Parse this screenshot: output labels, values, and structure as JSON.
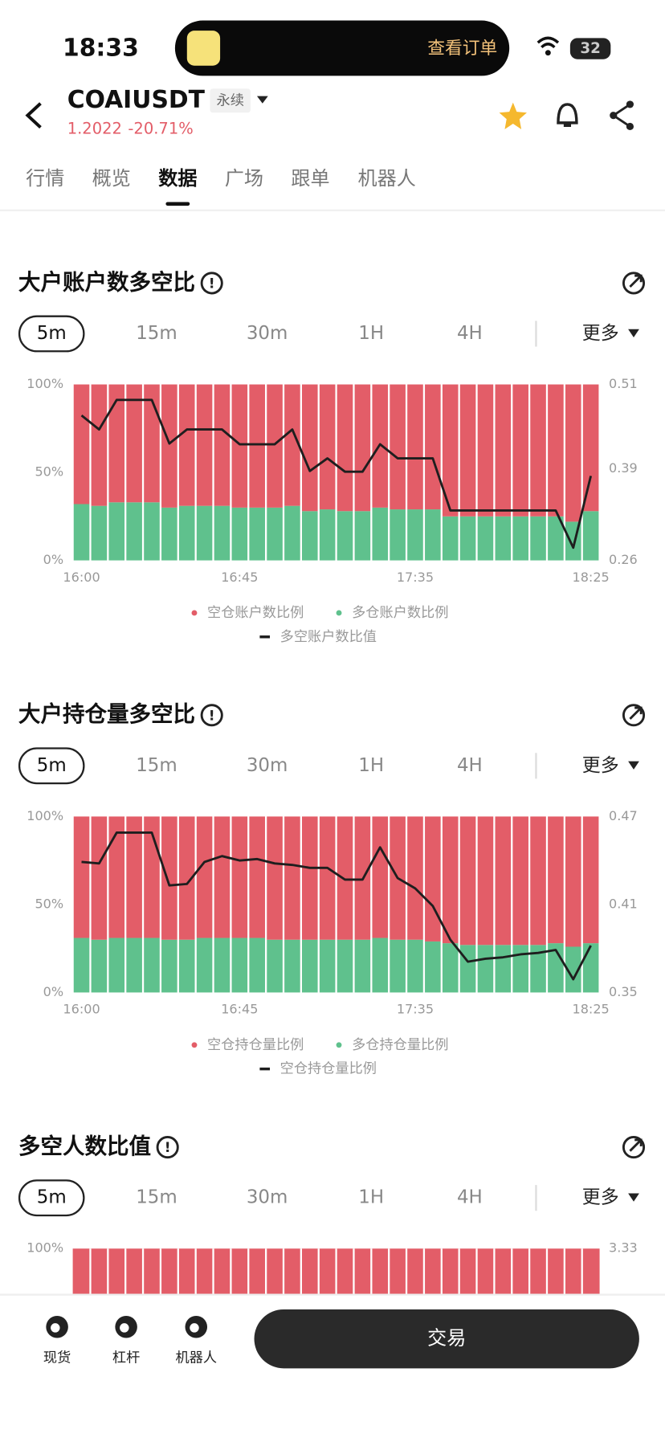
{
  "status_bar": {
    "time": "18:33",
    "notice": "查看订单",
    "battery": "32"
  },
  "header": {
    "symbol": "COAIUSDT",
    "contract": "永续",
    "price": "1.2022",
    "change": "-20.71%"
  },
  "tabs": [
    "行情",
    "概览",
    "数据",
    "广场",
    "跟单",
    "机器人"
  ],
  "active_tab": 2,
  "intervals": [
    "5m",
    "15m",
    "30m",
    "1H",
    "4H"
  ],
  "more": "更多",
  "chart_data": [
    {
      "type": "bar",
      "title": "大户账户数多空比",
      "categories": [
        "16:00",
        null,
        null,
        null,
        null,
        null,
        null,
        null,
        null,
        "16:45",
        null,
        null,
        null,
        null,
        null,
        null,
        null,
        null,
        null,
        "17:35",
        null,
        null,
        null,
        null,
        null,
        null,
        null,
        null,
        null,
        "18:25"
      ],
      "series": [
        {
          "name": "空仓账户数比例",
          "color": "#e35d68",
          "values": [
            68,
            69,
            67,
            67,
            67,
            70,
            69,
            69,
            69,
            70,
            70,
            70,
            69,
            72,
            71,
            72,
            72,
            70,
            71,
            71,
            71,
            75,
            75,
            75,
            75,
            75,
            75,
            75,
            78,
            72
          ]
        },
        {
          "name": "多仓账户数比例",
          "color": "#5fc18d",
          "values": [
            32,
            31,
            33,
            33,
            33,
            30,
            31,
            31,
            31,
            30,
            30,
            30,
            31,
            28,
            29,
            28,
            28,
            30,
            29,
            29,
            29,
            25,
            25,
            25,
            25,
            25,
            25,
            25,
            22,
            28
          ]
        },
        {
          "name": "多空账户数比值",
          "color": "#1e1e1e",
          "type": "line",
          "axis": "y2",
          "values": [
            0.466,
            0.446,
            0.488,
            0.488,
            0.488,
            0.426,
            0.446,
            0.446,
            0.446,
            0.425,
            0.425,
            0.425,
            0.446,
            0.387,
            0.405,
            0.386,
            0.386,
            0.425,
            0.405,
            0.405,
            0.405,
            0.331,
            0.331,
            0.331,
            0.331,
            0.331,
            0.331,
            0.331,
            0.278,
            0.38
          ]
        }
      ],
      "ylim": [
        0,
        100
      ],
      "yticks": [
        {
          "value": 0,
          "label": "0%"
        },
        {
          "value": 50,
          "label": "50%"
        },
        {
          "value": 100,
          "label": "100%"
        }
      ],
      "y2lim": [
        0.26,
        0.51
      ],
      "y2ticks": [
        0.26,
        0.39,
        0.51
      ]
    },
    {
      "type": "bar",
      "title": "大户持仓量多空比",
      "categories": [
        "16:00",
        null,
        null,
        null,
        null,
        null,
        null,
        null,
        null,
        "16:45",
        null,
        null,
        null,
        null,
        null,
        null,
        null,
        null,
        null,
        "17:35",
        null,
        null,
        null,
        null,
        null,
        null,
        null,
        null,
        null,
        "18:25"
      ],
      "series": [
        {
          "name": "空仓持仓量比例",
          "color": "#e35d68",
          "values": [
            69,
            70,
            69,
            69,
            69,
            70,
            70,
            69,
            69,
            69,
            69,
            70,
            70,
            70,
            70,
            70,
            70,
            69,
            70,
            70,
            71,
            72,
            73,
            73,
            73,
            73,
            73,
            72,
            74,
            72
          ]
        },
        {
          "name": "多仓持仓量比例",
          "color": "#5fc18d",
          "values": [
            31,
            30,
            31,
            31,
            31,
            30,
            30,
            31,
            31,
            31,
            31,
            30,
            30,
            30,
            30,
            30,
            30,
            31,
            30,
            30,
            29,
            28,
            27,
            27,
            27,
            27,
            27,
            28,
            26,
            28
          ]
        },
        {
          "name": "空仓持仓量比例",
          "color": "#1e1e1e",
          "type": "line",
          "axis": "y2",
          "values": [
            0.439,
            0.438,
            0.459,
            0.459,
            0.459,
            0.423,
            0.424,
            0.439,
            0.443,
            0.44,
            0.441,
            0.438,
            0.437,
            0.435,
            0.435,
            0.427,
            0.427,
            0.449,
            0.428,
            0.421,
            0.409,
            0.386,
            0.371,
            0.373,
            0.374,
            0.376,
            0.377,
            0.379,
            0.359,
            0.382
          ]
        }
      ],
      "ylim": [
        0,
        100
      ],
      "yticks": [
        {
          "value": 0,
          "label": "0%"
        },
        {
          "value": 50,
          "label": "50%"
        },
        {
          "value": 100,
          "label": "100%"
        }
      ],
      "y2lim": [
        0.35,
        0.47
      ],
      "y2ticks": [
        0.35,
        0.41,
        0.47
      ]
    },
    {
      "type": "partial",
      "title": "多空人数比值",
      "yticks": [
        {
          "value": 100,
          "label": "100%"
        }
      ],
      "y2ticks": [
        3.33
      ]
    }
  ],
  "bottom_nav": [
    "现货",
    "杠杆",
    "机器人"
  ],
  "trade_button": "交易"
}
